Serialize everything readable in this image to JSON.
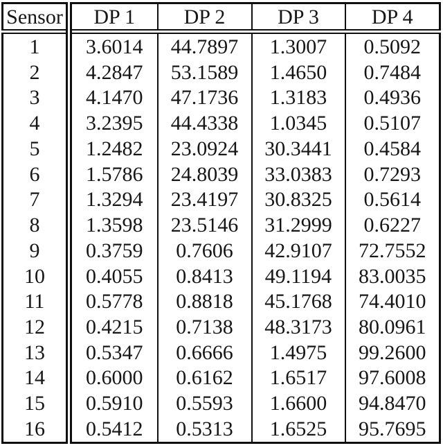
{
  "colors": {
    "border": "#0f0f0f",
    "text": "#161616",
    "background": "#ffffff"
  },
  "table": {
    "columns": [
      "Sensor",
      "DP 1",
      "DP 2",
      "DP 3",
      "DP 4"
    ],
    "rows": [
      {
        "sensor": "1",
        "values": [
          "3.6014",
          "44.7897",
          "1.3007",
          "0.5092"
        ]
      },
      {
        "sensor": "2",
        "values": [
          "4.2847",
          "53.1589",
          "1.4650",
          "0.7484"
        ]
      },
      {
        "sensor": "3",
        "values": [
          "4.1470",
          "47.1736",
          "1.3183",
          "0.4936"
        ]
      },
      {
        "sensor": "4",
        "values": [
          "3.2395",
          "44.4338",
          "1.0345",
          "0.5107"
        ]
      },
      {
        "sensor": "5",
        "values": [
          "1.2482",
          "23.0924",
          "30.3441",
          "0.4584"
        ]
      },
      {
        "sensor": "6",
        "values": [
          "1.5786",
          "24.8039",
          "33.0383",
          "0.7293"
        ]
      },
      {
        "sensor": "7",
        "values": [
          "1.3294",
          "23.4197",
          "30.8325",
          "0.5614"
        ]
      },
      {
        "sensor": "8",
        "values": [
          "1.3598",
          "23.5146",
          "31.2999",
          "0.6227"
        ]
      },
      {
        "sensor": "9",
        "values": [
          "0.3759",
          "0.7606",
          "42.9107",
          "72.7552"
        ]
      },
      {
        "sensor": "10",
        "values": [
          "0.4055",
          "0.8413",
          "49.1194",
          "83.0035"
        ]
      },
      {
        "sensor": "11",
        "values": [
          "0.5778",
          "0.8818",
          "45.1768",
          "74.4010"
        ]
      },
      {
        "sensor": "12",
        "values": [
          "0.4215",
          "0.7138",
          "48.3173",
          "80.0961"
        ]
      },
      {
        "sensor": "13",
        "values": [
          "0.5347",
          "0.6666",
          "1.4975",
          "99.2600"
        ]
      },
      {
        "sensor": "14",
        "values": [
          "0.6000",
          "0.6162",
          "1.6517",
          "97.6008"
        ]
      },
      {
        "sensor": "15",
        "values": [
          "0.5910",
          "0.5593",
          "1.6600",
          "94.8470"
        ]
      },
      {
        "sensor": "16",
        "values": [
          "0.5412",
          "0.5313",
          "1.6525",
          "95.7695"
        ]
      }
    ]
  }
}
